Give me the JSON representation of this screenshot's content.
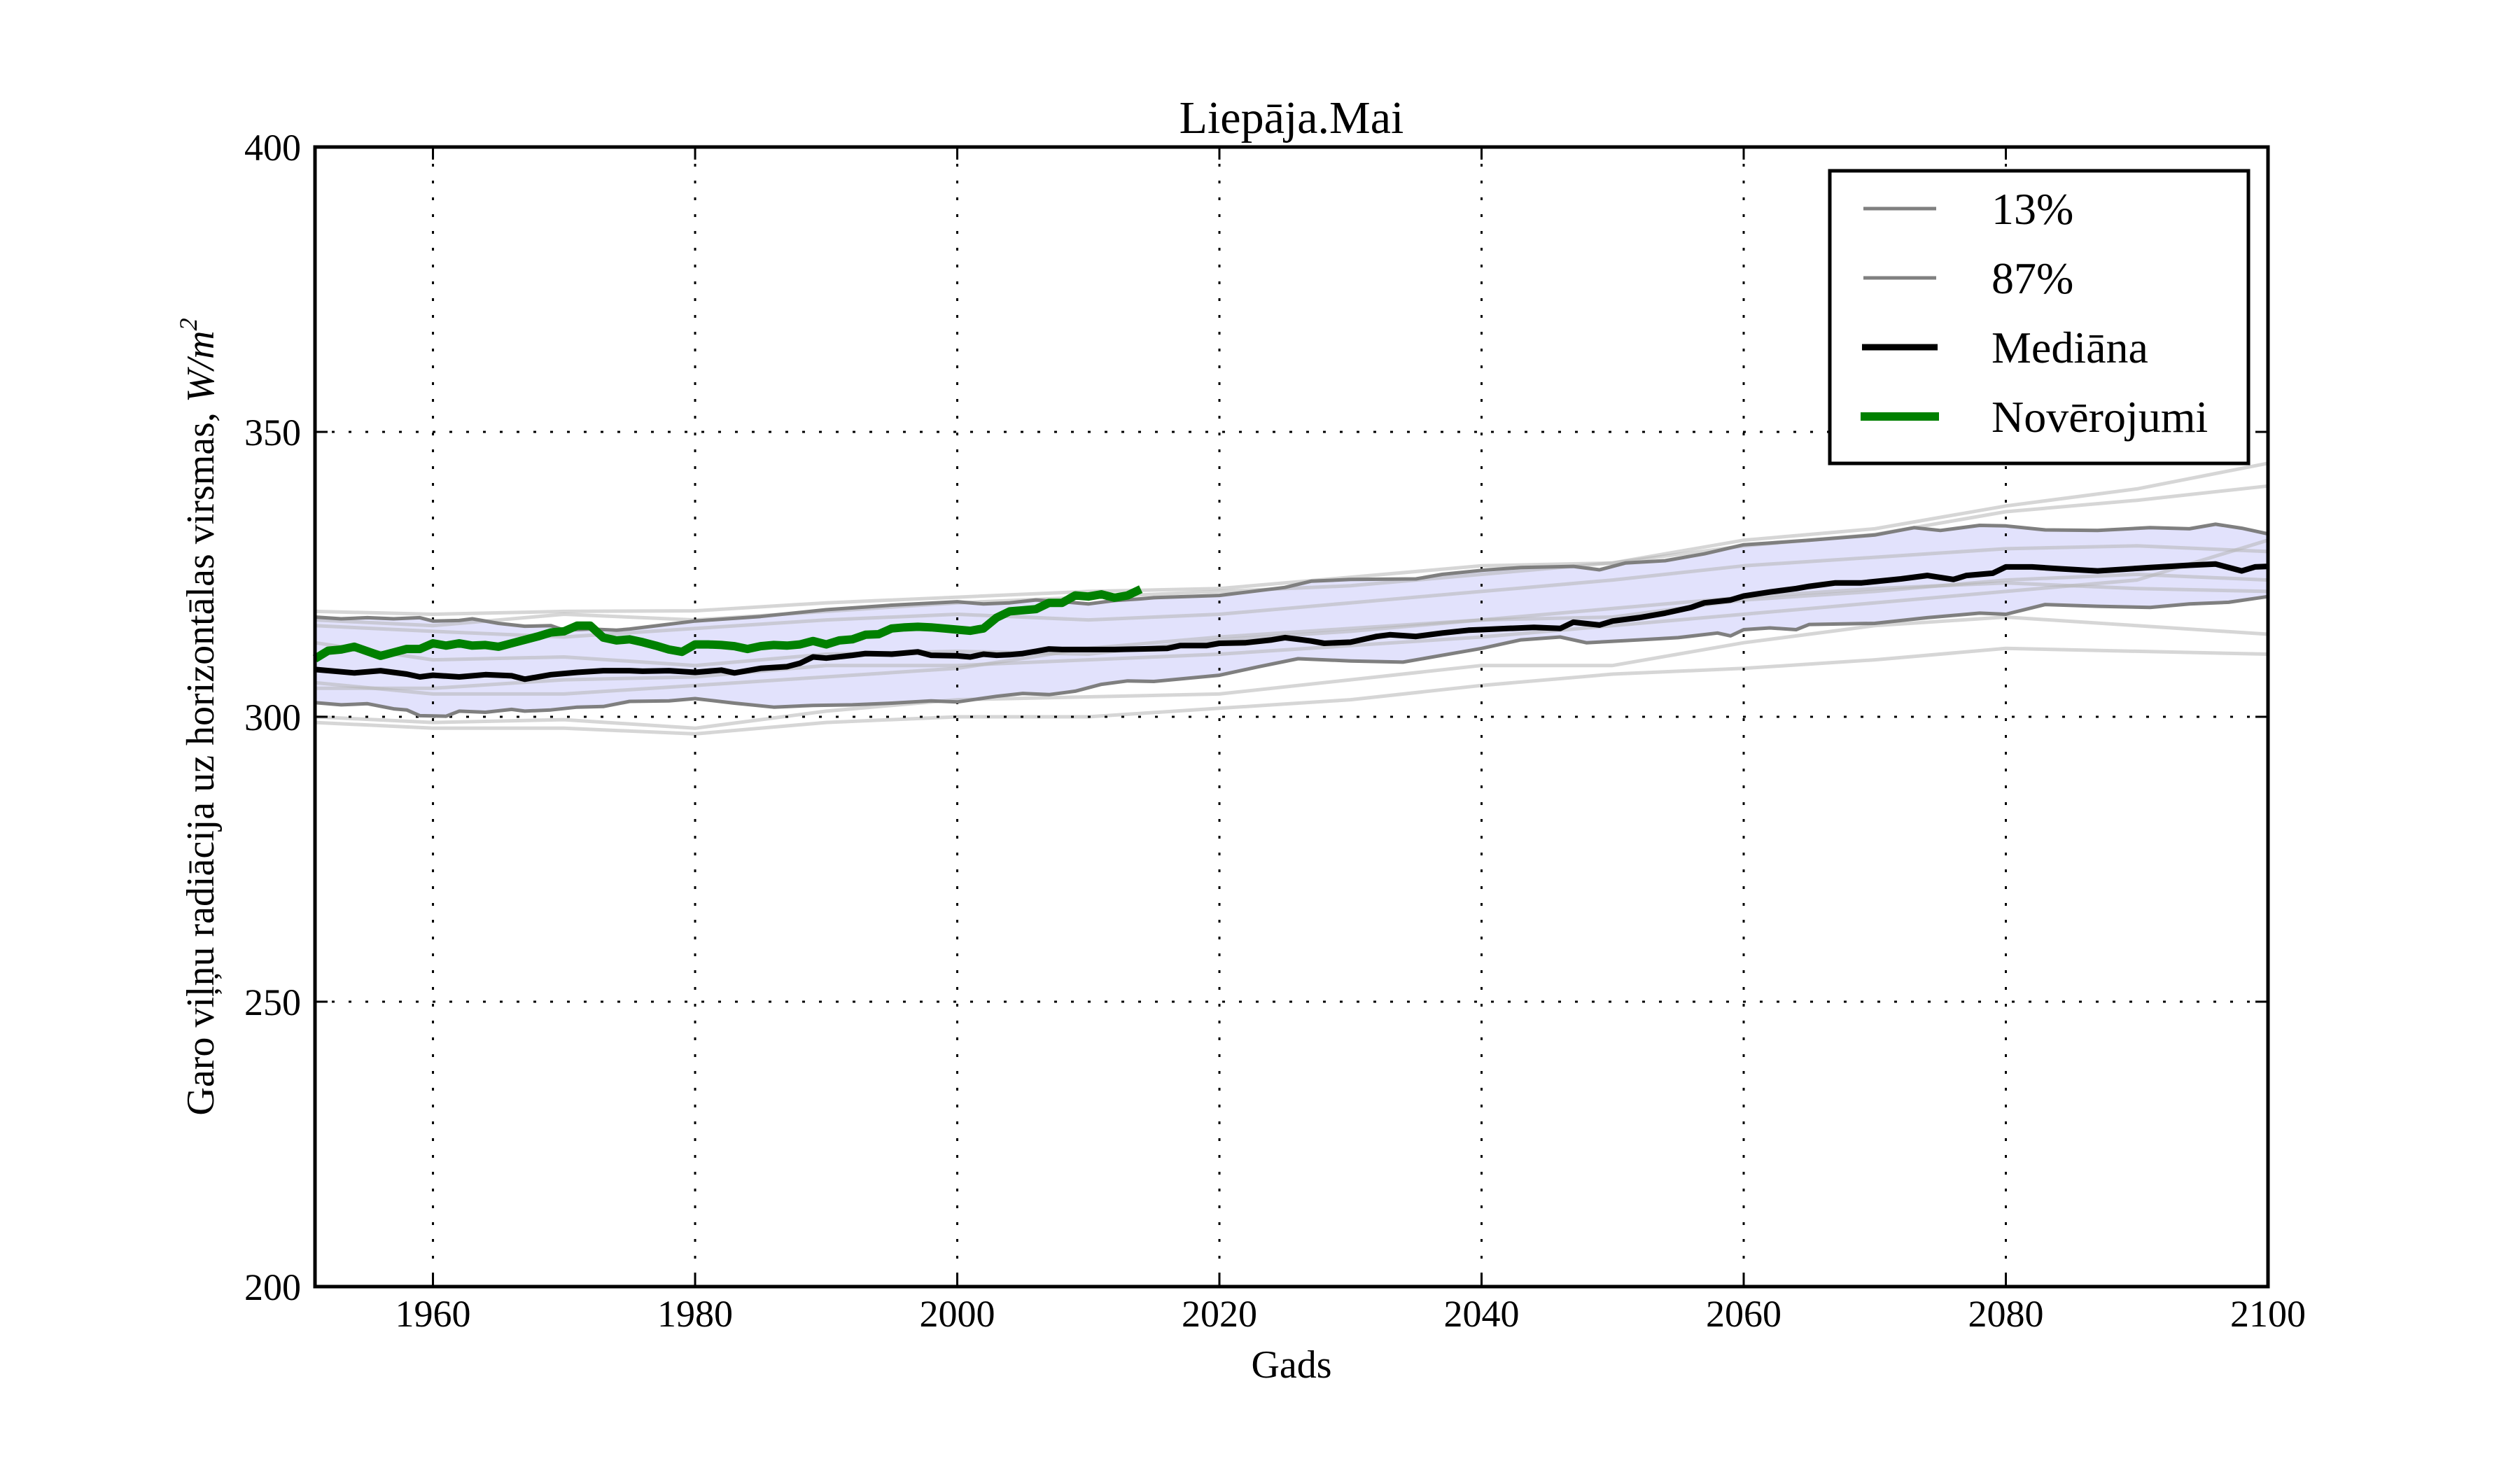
{
  "chart_data": {
    "type": "line",
    "title": "Liepāja.Mai",
    "xlabel": "Gads",
    "ylabel": "Garo viļņu radiācija uz horizontālas virsmas, ",
    "ylabel_unit": "W/m",
    "ylabel_unit_sup": "2",
    "xlim": [
      1951,
      2100
    ],
    "ylim": [
      200,
      400
    ],
    "xticks": [
      1960,
      1980,
      2000,
      2020,
      2040,
      2060,
      2080,
      2100
    ],
    "xtick_labels": [
      "1960",
      "1980",
      "2000",
      "2020",
      "2040",
      "2060",
      "2080",
      "2100"
    ],
    "yticks": [
      200,
      250,
      300,
      350,
      400
    ],
    "ytick_labels": [
      "200",
      "250",
      "300",
      "350",
      "400"
    ],
    "grid": true,
    "legend_position": "top-right",
    "legend": [
      {
        "label": "13%",
        "color": "#808080",
        "style": "thin"
      },
      {
        "label": "87%",
        "color": "#808080",
        "style": "thin"
      },
      {
        "label": "Mediāna",
        "color": "#000000",
        "style": "thick"
      },
      {
        "label": "Novērojumi",
        "color": "#008000",
        "style": "thicker"
      }
    ],
    "colors": {
      "band": "#e2e2fc",
      "percentile": "#7f7f7f",
      "ensemble": "#c8c8c8",
      "median": "#000000",
      "observations": "#008000"
    },
    "band": {
      "lower": "13%",
      "upper": "87%"
    },
    "series": [
      {
        "name": "13%",
        "x": [
          1951,
          1953,
          1955,
          1957,
          1958,
          1959,
          1961,
          1962,
          1964,
          1966,
          1967,
          1969,
          1971,
          1973,
          1975,
          1978,
          1980,
          1983,
          1986,
          1989,
          1992,
          1995,
          1998,
          2000,
          2003,
          2005,
          2007,
          2009,
          2011,
          2013,
          2015,
          2020,
          2023,
          2026,
          2030,
          2034,
          2038,
          2040,
          2043,
          2046,
          2048,
          2052,
          2055,
          2058,
          2059,
          2060,
          2062,
          2064,
          2065,
          2070,
          2074,
          2078,
          2080,
          2083,
          2087,
          2091,
          2094,
          2097,
          2100
        ],
        "y": [
          302.5,
          302.1,
          302.3,
          301.4,
          301.2,
          300.2,
          300.1,
          301.0,
          300.8,
          301.3,
          301.0,
          301.2,
          301.7,
          301.8,
          302.7,
          302.8,
          303.2,
          302.4,
          301.7,
          302.0,
          302.1,
          302.4,
          302.8,
          302.6,
          303.6,
          304.1,
          303.9,
          304.5,
          305.7,
          306.3,
          306.2,
          307.3,
          308.8,
          310.2,
          309.8,
          309.6,
          311.2,
          312.0,
          313.5,
          314.0,
          313.0,
          313.5,
          313.9,
          314.7,
          314.2,
          315.3,
          315.6,
          315.3,
          316.2,
          316.4,
          317.4,
          318.2,
          318.0,
          319.7,
          319.4,
          319.2,
          319.8,
          320.1,
          321.1
        ]
      },
      {
        "name": "87%",
        "x": [
          1951,
          1953,
          1955,
          1957,
          1959,
          1960,
          1962,
          1963,
          1965,
          1967,
          1969,
          1970,
          1972,
          1974,
          1975,
          1980,
          1985,
          1990,
          1995,
          2000,
          2002,
          2004,
          2006,
          2008,
          2010,
          2012,
          2014,
          2015,
          2020,
          2025,
          2027,
          2030,
          2035,
          2037,
          2040,
          2043,
          2047,
          2049,
          2051,
          2054,
          2057,
          2060,
          2062,
          2065,
          2070,
          2073,
          2075,
          2078,
          2080,
          2083,
          2087,
          2091,
          2094,
          2096,
          2098,
          2100
        ],
        "y": [
          317.5,
          317.2,
          317.4,
          317.2,
          317.4,
          316.8,
          316.9,
          317.2,
          316.4,
          315.9,
          316.0,
          315.2,
          315.4,
          315.2,
          315.4,
          316.8,
          317.6,
          318.8,
          319.6,
          320.2,
          319.8,
          320.0,
          320.5,
          320.2,
          319.8,
          320.4,
          320.7,
          320.9,
          321.3,
          322.7,
          323.8,
          324.1,
          324.2,
          325.0,
          325.7,
          326.2,
          326.4,
          325.8,
          327.0,
          327.4,
          328.6,
          330.2,
          330.5,
          331.0,
          331.9,
          333.2,
          332.7,
          333.6,
          333.5,
          332.8,
          332.7,
          333.2,
          333.0,
          333.8,
          333.1,
          332.1
        ]
      },
      {
        "name": "Mediāna",
        "x": [
          1951,
          1954,
          1956,
          1958,
          1959,
          1960,
          1962,
          1964,
          1966,
          1967,
          1969,
          1971,
          1973,
          1975,
          1976,
          1978,
          1980,
          1982,
          1983,
          1985,
          1987,
          1988,
          1989,
          1990,
          1992,
          1993,
          1995,
          1997,
          1998,
          2000,
          2001,
          2002,
          2003,
          2004,
          2005,
          2006,
          2007,
          2008,
          2010,
          2012,
          2014,
          2016,
          2017,
          2019,
          2020,
          2022,
          2024,
          2025,
          2027,
          2028,
          2030,
          2032,
          2033,
          2035,
          2037,
          2039,
          2040,
          2042,
          2044,
          2046,
          2047,
          2049,
          2050,
          2052,
          2054,
          2056,
          2057,
          2059,
          2060,
          2062,
          2064,
          2065,
          2067,
          2069,
          2072,
          2074,
          2076,
          2077,
          2079,
          2080,
          2082,
          2084,
          2087,
          2089,
          2091,
          2094,
          2096,
          2098,
          2099,
          2100
        ],
        "y": [
          308.3,
          307.7,
          308.1,
          307.5,
          307.0,
          307.3,
          307.0,
          307.4,
          307.2,
          306.6,
          307.4,
          307.8,
          308.1,
          308.1,
          308.0,
          308.1,
          307.8,
          308.2,
          307.7,
          308.5,
          308.8,
          309.4,
          310.5,
          310.3,
          310.8,
          311.1,
          311.0,
          311.4,
          310.8,
          310.7,
          310.5,
          311.0,
          310.8,
          310.9,
          311.1,
          311.5,
          311.9,
          311.8,
          311.8,
          311.8,
          311.9,
          312.0,
          312.5,
          312.5,
          312.9,
          313.0,
          313.5,
          313.9,
          313.3,
          312.9,
          313.1,
          314.1,
          314.4,
          314.1,
          314.7,
          315.2,
          315.3,
          315.5,
          315.7,
          315.5,
          316.6,
          316.1,
          316.8,
          317.4,
          318.2,
          319.2,
          320.0,
          320.5,
          321.2,
          321.9,
          322.5,
          322.9,
          323.5,
          323.5,
          324.2,
          324.8,
          324.1,
          324.8,
          325.2,
          326.3,
          326.3,
          326.0,
          325.6,
          325.9,
          326.2,
          326.6,
          326.8,
          325.6,
          326.3,
          326.4
        ]
      },
      {
        "name": "Novērojumi",
        "x": [
          1951,
          1952,
          1953,
          1954,
          1955,
          1956,
          1957,
          1958,
          1959,
          1960,
          1961,
          1962,
          1963,
          1964,
          1965,
          1966,
          1967,
          1968,
          1969,
          1970,
          1971,
          1972,
          1973,
          1974,
          1975,
          1976,
          1977,
          1978,
          1979,
          1980,
          1981,
          1982,
          1983,
          1984,
          1985,
          1986,
          1987,
          1988,
          1989,
          1990,
          1991,
          1992,
          1993,
          1994,
          1995,
          1996,
          1997,
          1998,
          1999,
          2000,
          2001,
          2002,
          2003,
          2004,
          2005,
          2006,
          2007,
          2008,
          2009,
          2010,
          2011,
          2012,
          2013,
          2014
        ],
        "y": [
          310.2,
          311.6,
          311.8,
          312.3,
          311.5,
          310.7,
          311.3,
          311.9,
          311.9,
          312.9,
          312.5,
          312.9,
          312.5,
          312.6,
          312.3,
          312.9,
          313.5,
          314.1,
          314.8,
          315.0,
          316.0,
          316.0,
          313.9,
          313.4,
          313.6,
          313.1,
          312.5,
          311.8,
          311.4,
          312.7,
          312.7,
          312.6,
          312.4,
          311.9,
          312.4,
          312.6,
          312.5,
          312.7,
          313.3,
          312.7,
          313.4,
          313.6,
          314.4,
          314.5,
          315.5,
          315.7,
          315.8,
          315.7,
          315.5,
          315.3,
          315.1,
          315.5,
          317.4,
          318.5,
          318.7,
          318.9,
          320.0,
          320.0,
          321.3,
          321.1,
          321.5,
          320.9,
          321.3,
          322.4
        ]
      }
    ],
    "ensemble_x": [
      1951,
      1960,
      1970,
      1980,
      1990,
      2000,
      2010,
      2020,
      2030,
      2040,
      2050,
      2060,
      2070,
      2080,
      2090,
      2100
    ],
    "ensemble": [
      [
        318.5,
        318.0,
        318.5,
        318.6,
        320.0,
        321.0,
        322.0,
        322.5,
        324.5,
        326.5,
        327.0,
        331.0,
        333.0,
        337.0,
        340.0,
        344.5
      ],
      [
        317.0,
        316.0,
        318.0,
        317.0,
        318.5,
        320.0,
        321.0,
        322.0,
        323.0,
        325.0,
        327.0,
        330.0,
        332.0,
        336.0,
        338.0,
        340.5
      ],
      [
        299.0,
        298.0,
        298.0,
        297.0,
        299.0,
        300.0,
        300.0,
        301.5,
        303.0,
        305.5,
        307.5,
        308.5,
        310.0,
        312.0,
        311.5,
        311.0
      ],
      [
        300.0,
        299.0,
        299.5,
        298.0,
        301.0,
        303.0,
        303.5,
        304.0,
        306.5,
        309.0,
        309.0,
        313.0,
        316.0,
        317.5,
        316.0,
        314.5
      ],
      [
        316.0,
        315.0,
        314.0,
        315.5,
        317.0,
        318.0,
        317.0,
        318.0,
        320.0,
        322.0,
        324.0,
        326.5,
        328.0,
        329.5,
        330.0,
        329.0
      ],
      [
        305.0,
        305.0,
        306.5,
        307.0,
        309.0,
        309.0,
        310.0,
        311.0,
        312.5,
        314.0,
        316.0,
        318.0,
        320.0,
        322.0,
        324.0,
        331.0
      ],
      [
        306.0,
        304.0,
        304.0,
        305.5,
        307.0,
        308.5,
        312.0,
        314.0,
        315.5,
        317.0,
        317.5,
        320.5,
        322.0,
        324.0,
        325.0,
        324.0
      ],
      [
        313.0,
        310.0,
        310.5,
        309.0,
        311.0,
        311.5,
        311.0,
        313.5,
        315.0,
        317.0,
        319.0,
        321.0,
        322.5,
        323.5,
        322.5,
        322.0
      ]
    ]
  }
}
